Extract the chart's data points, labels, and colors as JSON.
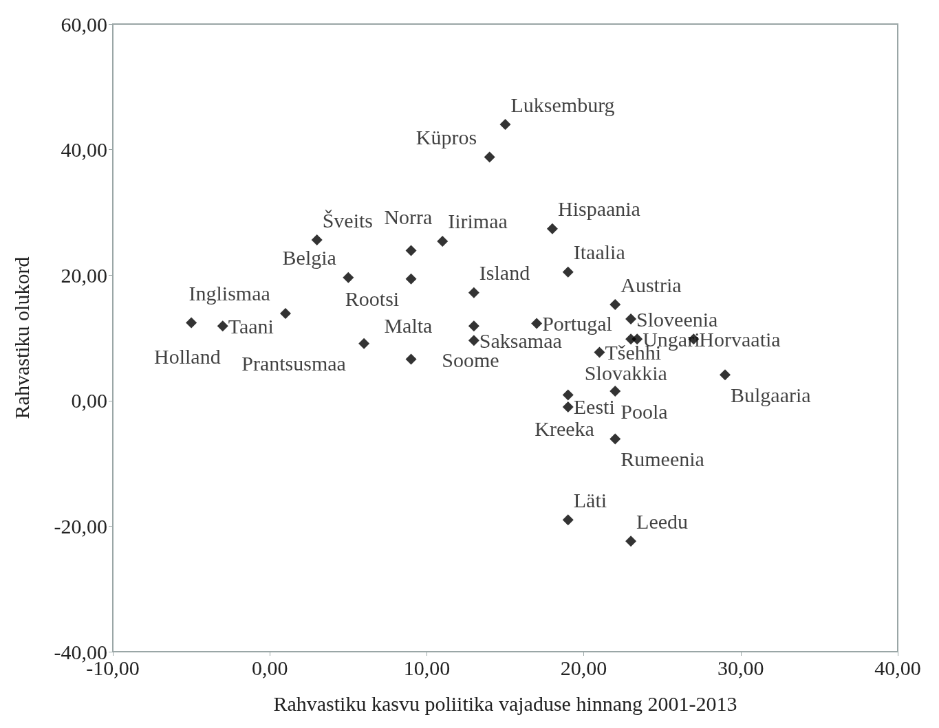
{
  "chart_data": {
    "type": "scatter",
    "xlabel": "Rahvastiku kasvu poliitika vajaduse hinnang 2001-2013",
    "ylabel": "Rahvastiku olukord",
    "x": [
      15,
      14,
      18,
      19,
      3,
      9,
      11,
      5,
      9,
      13,
      1,
      -5,
      -3,
      6,
      13,
      13,
      9,
      17,
      22,
      23,
      23,
      23.4,
      27,
      21,
      29,
      22,
      19,
      19,
      22,
      19,
      23
    ],
    "series": [
      {
        "color": "#000000",
        "values": [
          44,
          38.8,
          27.4,
          20.5,
          25.6,
          23.9,
          25.4,
          19.6,
          19.4,
          17.2,
          13.9,
          12.4,
          11.9,
          9.1,
          11.9,
          9.6,
          6.6,
          12.3,
          15.3,
          13,
          9.8,
          9.8,
          9.8,
          7.7,
          4.1,
          1.5,
          0.9,
          -1,
          -6.1,
          -19,
          -22.4
        ]
      }
    ],
    "xlim": [
      -10,
      40
    ],
    "xticks": [
      {
        "value": -10,
        "label": "-10,00"
      },
      {
        "value": 0,
        "label": "0,00"
      },
      {
        "value": 10,
        "label": "10,00"
      },
      {
        "value": 20,
        "label": "20,00"
      },
      {
        "value": 30,
        "label": "30,00"
      },
      {
        "value": 40,
        "label": "40,00"
      }
    ],
    "ylim": [
      -40,
      60
    ],
    "yticks": [
      {
        "value": -40,
        "label": "-40,00"
      },
      {
        "value": -20,
        "label": "-20,00"
      },
      {
        "value": 0,
        "label": "0,00"
      },
      {
        "value": 20,
        "label": "20,00"
      },
      {
        "value": 40,
        "label": "40,00"
      },
      {
        "value": 60,
        "label": "60,00"
      }
    ],
    "marker": "diamond",
    "grid": false,
    "annotations": [
      {
        "text": "Luksemburg",
        "x": 15,
        "y": 44
      },
      {
        "text": "Küpros",
        "x": 14,
        "y": 38.8
      },
      {
        "text": "Hispaania",
        "x": 18,
        "y": 27.4
      },
      {
        "text": "Itaalia",
        "x": 19,
        "y": 20.5
      },
      {
        "text": "Šveits",
        "x": 3,
        "y": 25.6
      },
      {
        "text": "Norra",
        "x": 9,
        "y": 23.9
      },
      {
        "text": "Iirimaa",
        "x": 11,
        "y": 25.4
      },
      {
        "text": "Belgia",
        "x": 5,
        "y": 19.6
      },
      {
        "text": "Rootsi",
        "x": 9,
        "y": 19.4
      },
      {
        "text": "Island",
        "x": 13,
        "y": 17.2
      },
      {
        "text": "Inglismaa",
        "x": 1,
        "y": 13.9
      },
      {
        "text": "Holland",
        "x": -5,
        "y": 12.4
      },
      {
        "text": "Taani",
        "x": -3,
        "y": 11.9
      },
      {
        "text": "Prantsusmaa",
        "x": 6,
        "y": 9.1
      },
      {
        "text": "Soome",
        "x": 13,
        "y": 11.9
      },
      {
        "text": "Saksamaa",
        "x": 13,
        "y": 9.6
      },
      {
        "text": "Malta",
        "x": 9,
        "y": 6.6
      },
      {
        "text": "Portugal",
        "x": 17,
        "y": 12.3
      },
      {
        "text": "Austria",
        "x": 22,
        "y": 15.3
      },
      {
        "text": "Sloveenia",
        "x": 23,
        "y": 13
      },
      {
        "text": "Slovakkia",
        "x": 23,
        "y": 9.8
      },
      {
        "text": "Ungari",
        "x": 23.4,
        "y": 9.8
      },
      {
        "text": "Horvaatia",
        "x": 27,
        "y": 9.8
      },
      {
        "text": "Tšehhi",
        "x": 21,
        "y": 7.7
      },
      {
        "text": "Bulgaaria",
        "x": 29,
        "y": 4.1
      },
      {
        "text": "Poola",
        "x": 22,
        "y": 1.5
      },
      {
        "text": "Kreeka",
        "x": 19,
        "y": 0.9
      },
      {
        "text": "Eesti",
        "x": 19,
        "y": -1
      },
      {
        "text": "Rumeenia",
        "x": 22,
        "y": -6.1
      },
      {
        "text": "Läti",
        "x": 19,
        "y": -19
      },
      {
        "text": "Leedu",
        "x": 23,
        "y": -22.4
      }
    ]
  }
}
